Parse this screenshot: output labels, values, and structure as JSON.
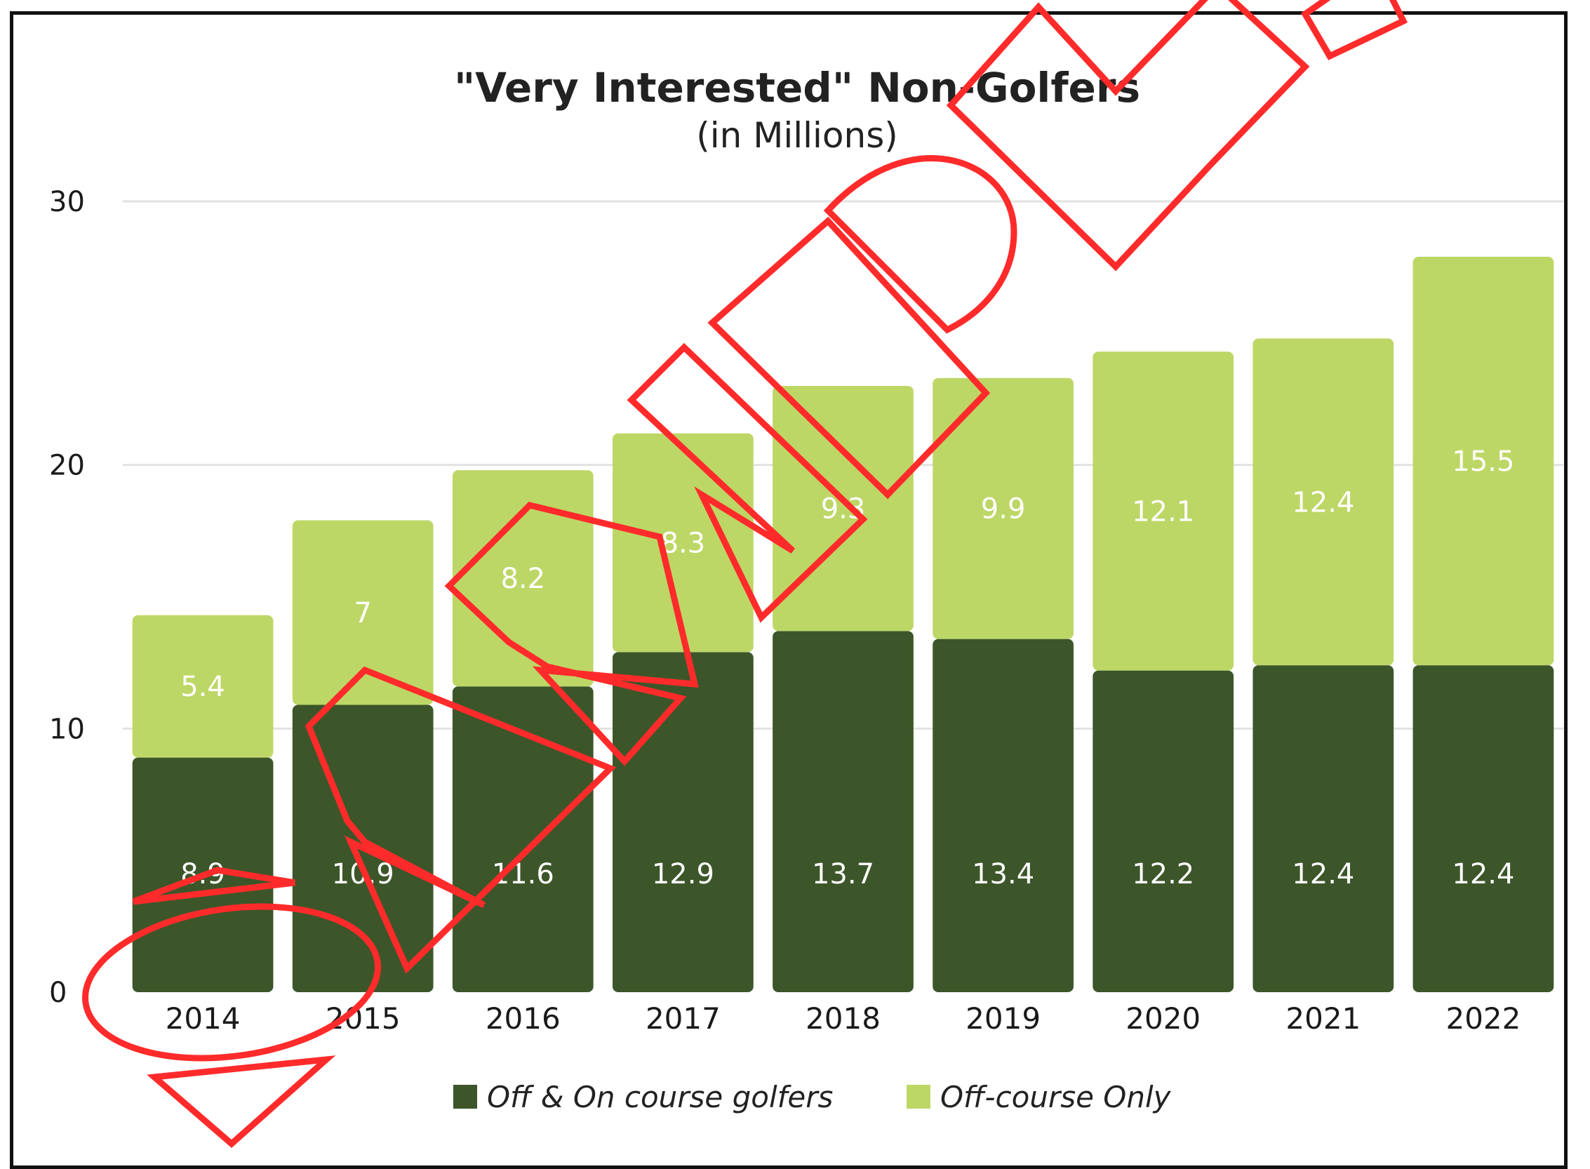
{
  "chart_data": {
    "type": "bar",
    "stacked": true,
    "title": "\"Very Interested\" Non-Golfers",
    "subtitle": "(in Millions)",
    "categories": [
      "2014",
      "2015",
      "2016",
      "2017",
      "2018",
      "2019",
      "2020",
      "2021",
      "2022"
    ],
    "series": [
      {
        "name": "Off & On course golfers",
        "color": "#3c5629",
        "values": [
          8.9,
          10.9,
          11.6,
          12.9,
          13.7,
          13.4,
          12.2,
          12.4,
          12.4
        ],
        "labels": [
          "8.9",
          "10.9",
          "11.6",
          "12.9",
          "13.7",
          "13.4",
          "12.2",
          "12.4",
          "12.4"
        ]
      },
      {
        "name": "Off-course Only",
        "color": "#bdd766",
        "values": [
          5.4,
          7,
          8.2,
          8.3,
          9.3,
          9.9,
          12.1,
          12.4,
          15.5
        ],
        "labels": [
          "5.4",
          "7",
          "8.2",
          "8.3",
          "9.3",
          "9.9",
          "12.1",
          "12.4",
          "15.5"
        ]
      }
    ],
    "y_ticks": [
      "0",
      "10",
      "20",
      "30"
    ],
    "ylim": [
      0,
      30
    ],
    "grid": true,
    "legend": "bottom"
  },
  "overlay": {
    "stamp": "SAMPLE",
    "color": "#ff2b2b"
  }
}
